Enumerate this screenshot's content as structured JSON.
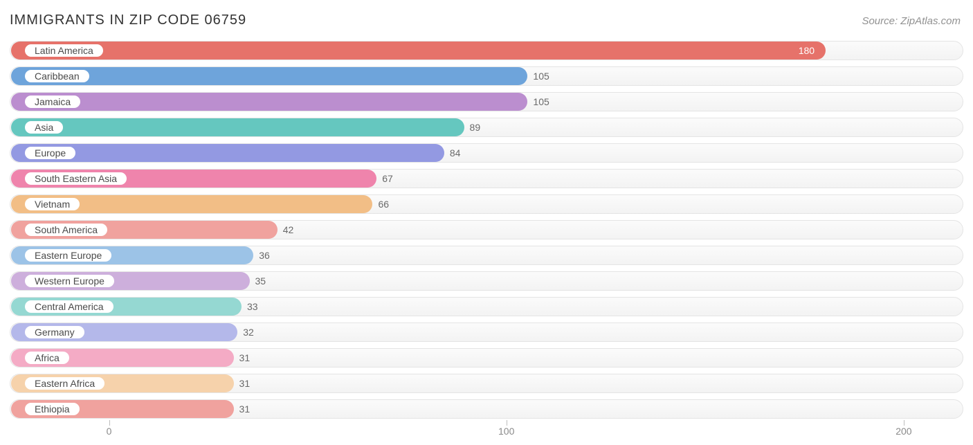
{
  "title": "IMMIGRANTS IN ZIP CODE 06759",
  "source": "Source: ZipAtlas.com",
  "chart": {
    "type": "bar-horizontal",
    "background_color": "#ffffff",
    "track_border_color": "#e4e4e4",
    "track_bg_top": "#fbfbfb",
    "track_bg_bottom": "#f3f3f3",
    "label_fontsize": 14,
    "value_fontsize": 14,
    "title_fontsize": 20,
    "title_color": "#333333",
    "source_color": "#919191",
    "value_color": "#696969",
    "domain_min": -25,
    "domain_max": 215,
    "xticks": [
      0,
      100,
      200
    ],
    "tick_color": "#bdbdbd",
    "tick_label_color": "#8a8a8a",
    "rows": [
      {
        "label": "Latin America",
        "value": 180,
        "color": "#e6726a",
        "value_inside": true,
        "value_text_color": "#ffffff"
      },
      {
        "label": "Caribbean",
        "value": 105,
        "color": "#6ea4db",
        "value_inside": false,
        "value_text_color": "#696969"
      },
      {
        "label": "Jamaica",
        "value": 105,
        "color": "#bb8ecf",
        "value_inside": false,
        "value_text_color": "#696969"
      },
      {
        "label": "Asia",
        "value": 89,
        "color": "#65c7bf",
        "value_inside": false,
        "value_text_color": "#696969"
      },
      {
        "label": "Europe",
        "value": 84,
        "color": "#9399e2",
        "value_inside": false,
        "value_text_color": "#696969"
      },
      {
        "label": "South Eastern Asia",
        "value": 67,
        "color": "#ef84ac",
        "value_inside": false,
        "value_text_color": "#696969"
      },
      {
        "label": "Vietnam",
        "value": 66,
        "color": "#f2be86",
        "value_inside": false,
        "value_text_color": "#696969"
      },
      {
        "label": "South America",
        "value": 42,
        "color": "#f0a29e",
        "value_inside": false,
        "value_text_color": "#696969"
      },
      {
        "label": "Eastern Europe",
        "value": 36,
        "color": "#9cc3e7",
        "value_inside": false,
        "value_text_color": "#696969"
      },
      {
        "label": "Western Europe",
        "value": 35,
        "color": "#cdafdc",
        "value_inside": false,
        "value_text_color": "#696969"
      },
      {
        "label": "Central America",
        "value": 33,
        "color": "#95d8d2",
        "value_inside": false,
        "value_text_color": "#696969"
      },
      {
        "label": "Germany",
        "value": 32,
        "color": "#b4b8ea",
        "value_inside": false,
        "value_text_color": "#696969"
      },
      {
        "label": "Africa",
        "value": 31,
        "color": "#f4abc5",
        "value_inside": false,
        "value_text_color": "#696969"
      },
      {
        "label": "Eastern Africa",
        "value": 31,
        "color": "#f6d2ab",
        "value_inside": false,
        "value_text_color": "#696969"
      },
      {
        "label": "Ethiopia",
        "value": 31,
        "color": "#f0a29e",
        "value_inside": false,
        "value_text_color": "#696969"
      }
    ]
  }
}
